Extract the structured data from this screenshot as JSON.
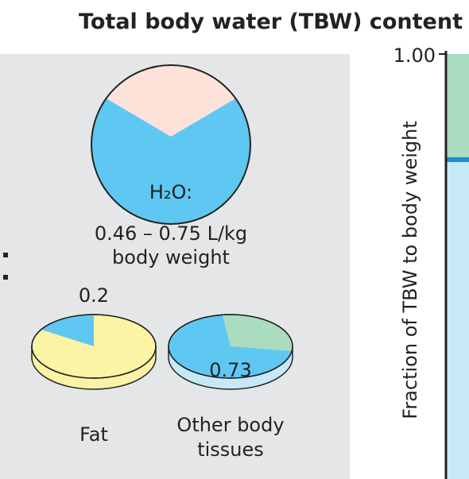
{
  "header": {
    "title": "Total body water (TBW) content"
  },
  "main_circle": {
    "label": "H₂O:",
    "range": "0.46 – 0.75 L/kg",
    "unit": "body weight"
  },
  "fat": {
    "fraction": "0.2",
    "label": "Fat"
  },
  "other": {
    "fraction": "0.73",
    "label_line1": "Other body",
    "label_line2": "tissues"
  },
  "axis": {
    "label": "Fraction of TBW to body weight",
    "tick": "1.00"
  }
}
